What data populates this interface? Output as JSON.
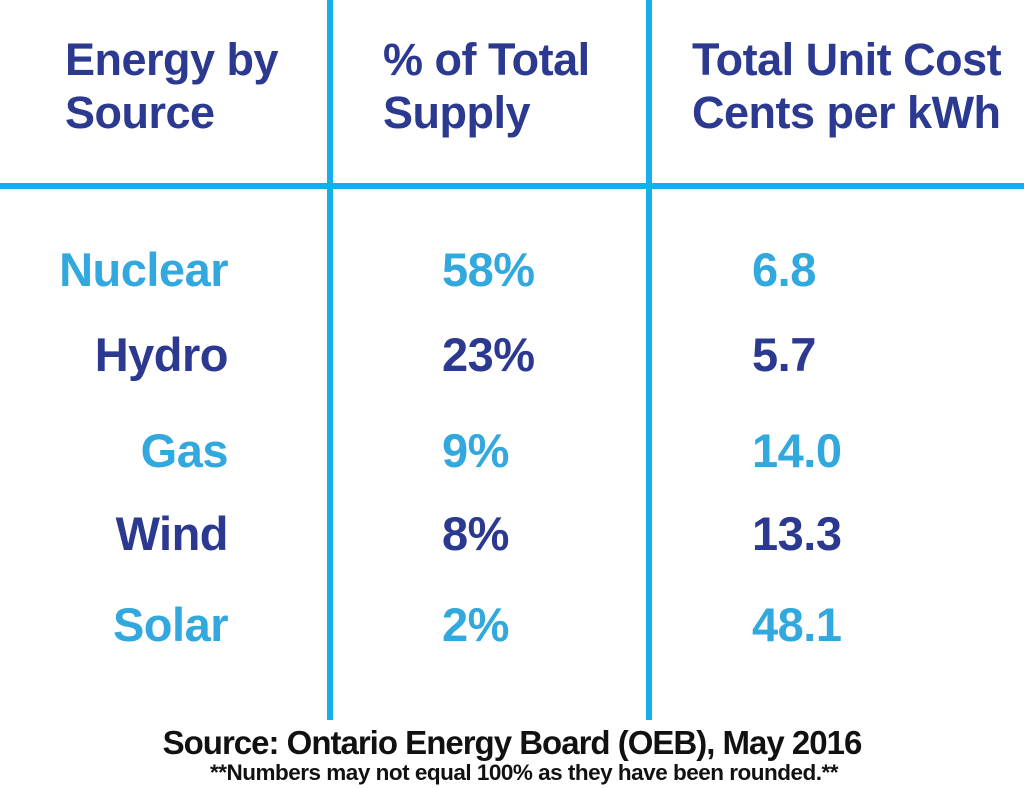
{
  "colors": {
    "background": "#FFFFFF",
    "grid_lines": "#14AEEB",
    "header_text": "#2B3990",
    "dark_row_text": "#2B3990",
    "light_row_text": "#31A8DE",
    "footer_text": "#111111"
  },
  "table": {
    "headers": [
      {
        "line1": "Energy by",
        "line2": "Source"
      },
      {
        "line1": "% of Total",
        "line2": "Supply"
      },
      {
        "line1": "Total Unit Cost",
        "line2": "Cents per kWh"
      }
    ],
    "rows": [
      {
        "source": "Nuclear",
        "percent": "58%",
        "cost": "6.8",
        "color": "#31A8DE"
      },
      {
        "source": "Hydro",
        "percent": "23%",
        "cost": "5.7",
        "color": "#2B3990"
      },
      {
        "source": "Gas",
        "percent": "9%",
        "cost": "14.0",
        "color": "#31A8DE"
      },
      {
        "source": "Wind",
        "percent": "8%",
        "cost": "13.3",
        "color": "#2B3990"
      },
      {
        "source": "Solar",
        "percent": "2%",
        "cost": "48.1",
        "color": "#31A8DE"
      }
    ]
  },
  "footer": {
    "source_line": "Source: Ontario Energy Board (OEB), May 2016",
    "note_line": "**Numbers may not equal 100% as they have been rounded.**"
  },
  "chart_data": {
    "type": "table",
    "columns": [
      "Energy by Source",
      "% of Total Supply",
      "Total Unit Cost Cents per kWh"
    ],
    "rows": [
      [
        "Nuclear",
        "58%",
        "6.8"
      ],
      [
        "Hydro",
        "23%",
        "5.7"
      ],
      [
        "Gas",
        "9%",
        "14.0"
      ],
      [
        "Wind",
        "8%",
        "13.3"
      ],
      [
        "Solar",
        "2%",
        "48.1"
      ]
    ],
    "categories": [
      "Nuclear",
      "Hydro",
      "Gas",
      "Wind",
      "Solar"
    ],
    "percent_of_total_supply": [
      58,
      23,
      9,
      8,
      2
    ],
    "total_unit_cost_cents_per_kwh": [
      6.8,
      5.7,
      14.0,
      13.3,
      48.1
    ],
    "source": "Source: Ontario Energy Board (OEB), May 2016",
    "note": "**Numbers may not equal 100% as they have been rounded.**"
  }
}
